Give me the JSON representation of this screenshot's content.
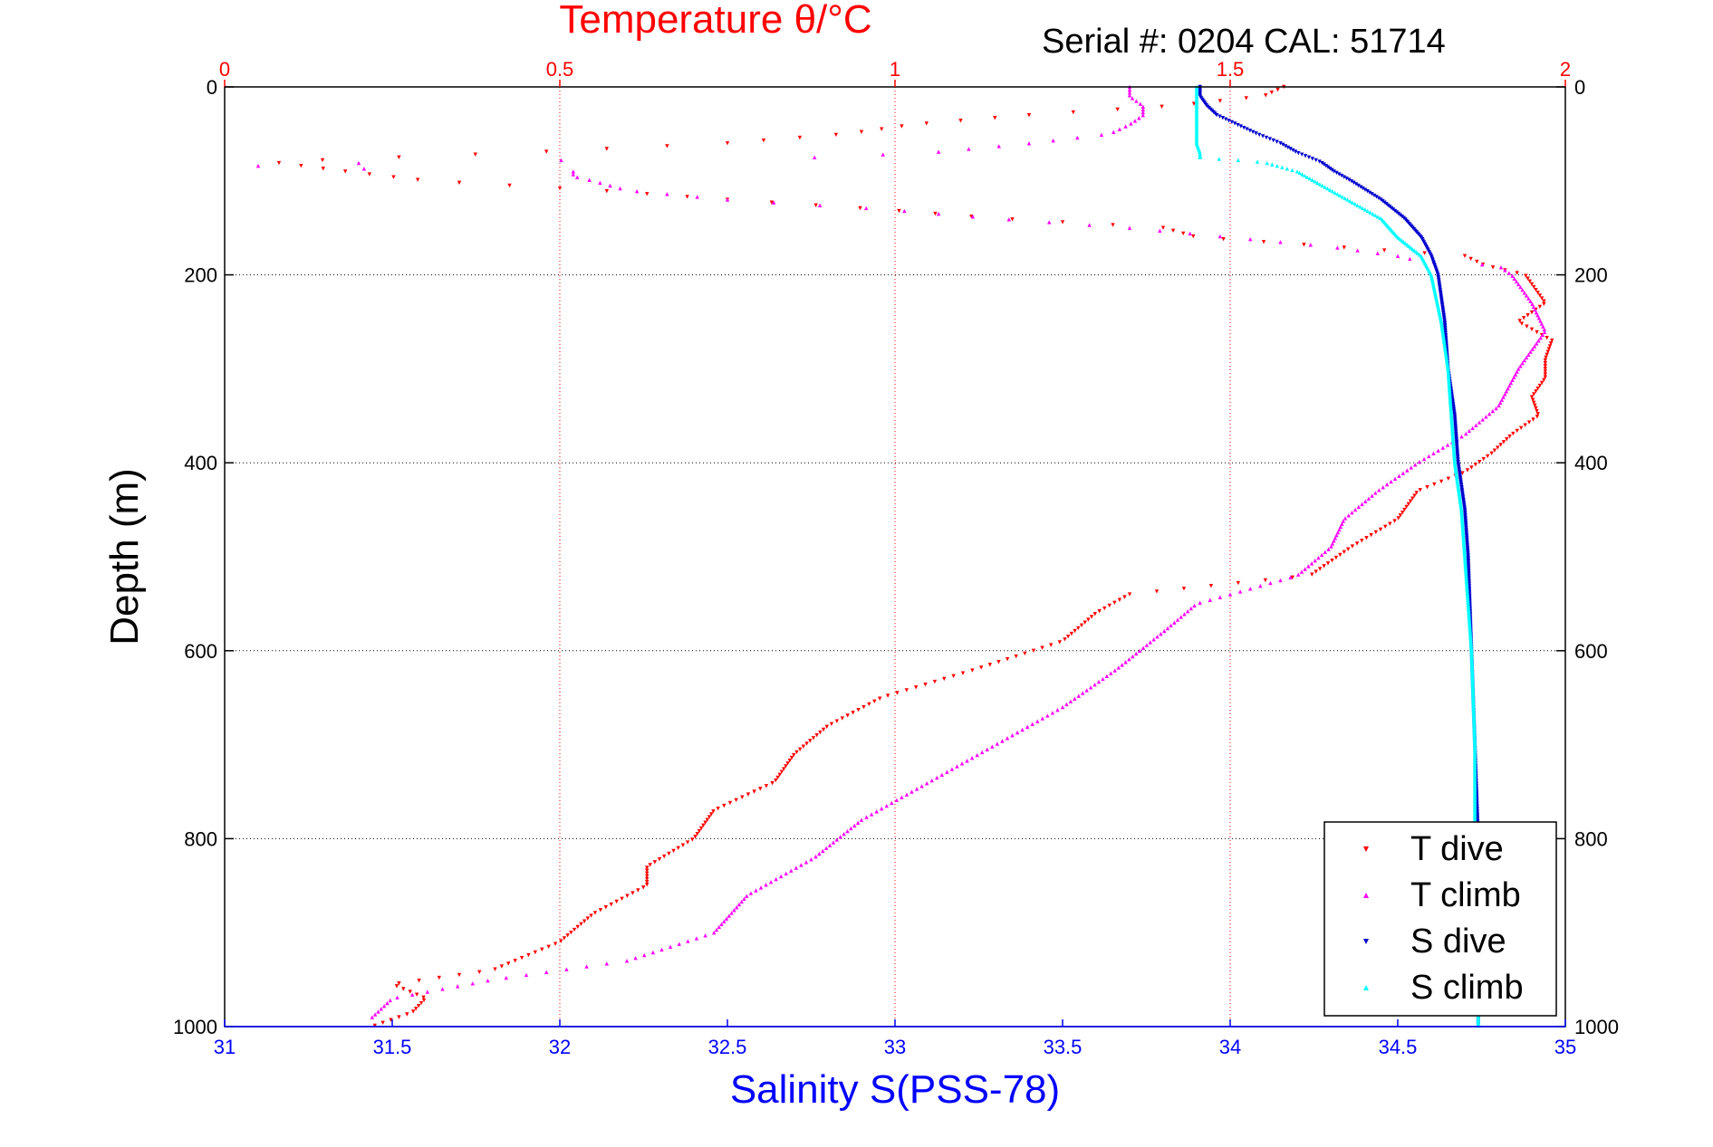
{
  "chart_data": {
    "type": "scatter",
    "top_axis": {
      "label": "Temperature θ/°C",
      "range": [
        0,
        2
      ],
      "ticks": [
        0,
        0.5,
        1,
        1.5,
        2
      ],
      "tick_labels": [
        "0",
        "0.5",
        "1",
        "1.5",
        "2"
      ],
      "color": "#ff0000"
    },
    "bottom_axis": {
      "label": "Salinity S(PSS-78)",
      "range": [
        31,
        35
      ],
      "ticks": [
        31,
        31.5,
        32,
        32.5,
        33,
        33.5,
        34,
        34.5,
        35
      ],
      "tick_labels": [
        "31",
        "31.5",
        "32",
        "32.5",
        "33",
        "33.5",
        "34",
        "34.5",
        "35"
      ],
      "color": "#0000ff"
    },
    "y_axis": {
      "label": "Depth (m)",
      "range": [
        0,
        1000
      ],
      "reversed": true,
      "ticks": [
        0,
        200,
        400,
        600,
        800,
        1000
      ],
      "tick_labels": [
        "0",
        "200",
        "400",
        "600",
        "800",
        "1000"
      ]
    },
    "grid": true,
    "annotation": "Serial #: 0204  CAL: 51714",
    "legend": {
      "position": "bottom-right",
      "entries": [
        "T dive",
        "T climb",
        "S dive",
        "S climb"
      ]
    },
    "series": [
      {
        "name": "T dive",
        "variable": "temperature",
        "color": "#ff0000",
        "marker": "triangle-down",
        "depth": [
          0,
          10,
          20,
          30,
          40,
          50,
          60,
          70,
          80,
          90,
          100,
          110,
          120,
          130,
          140,
          150,
          160,
          170,
          180,
          190,
          200,
          210,
          230,
          250,
          270,
          290,
          310,
          330,
          350,
          370,
          390,
          410,
          430,
          460,
          490,
          520,
          540,
          560,
          590,
          620,
          650,
          680,
          710,
          740,
          770,
          800,
          830,
          850,
          880,
          910,
          940,
          955,
          970,
          985,
          1000
        ],
        "values": [
          1.58,
          1.55,
          1.42,
          1.2,
          1.03,
          0.93,
          0.75,
          0.45,
          0.07,
          0.18,
          0.3,
          0.55,
          0.75,
          0.97,
          1.15,
          1.4,
          1.45,
          1.65,
          1.85,
          1.88,
          1.94,
          1.95,
          1.97,
          1.93,
          1.98,
          1.97,
          1.97,
          1.95,
          1.96,
          1.92,
          1.89,
          1.85,
          1.78,
          1.75,
          1.68,
          1.62,
          1.35,
          1.3,
          1.25,
          1.12,
          0.98,
          0.9,
          0.85,
          0.82,
          0.73,
          0.7,
          0.63,
          0.63,
          0.55,
          0.5,
          0.4,
          0.25,
          0.3,
          0.28,
          0.22
        ]
      },
      {
        "name": "T climb",
        "variable": "temperature",
        "color": "#ff00ff",
        "marker": "triangle-up",
        "depth": [
          0,
          10,
          20,
          30,
          40,
          50,
          60,
          70,
          75,
          80,
          85,
          90,
          95,
          100,
          110,
          120,
          130,
          140,
          150,
          160,
          170,
          180,
          185,
          190,
          200,
          210,
          230,
          260,
          300,
          340,
          370,
          400,
          430,
          460,
          490,
          520,
          550,
          580,
          620,
          660,
          700,
          740,
          780,
          820,
          860,
          900,
          930,
          950,
          970,
          990
        ],
        "values": [
          1.35,
          1.35,
          1.37,
          1.37,
          1.35,
          1.32,
          1.2,
          1.05,
          0.88,
          0.25,
          0.0,
          0.52,
          0.52,
          0.55,
          0.6,
          0.75,
          0.98,
          1.15,
          1.35,
          1.5,
          1.65,
          1.75,
          1.78,
          1.9,
          1.92,
          1.93,
          1.95,
          1.97,
          1.93,
          1.9,
          1.85,
          1.78,
          1.72,
          1.67,
          1.65,
          1.6,
          1.45,
          1.4,
          1.33,
          1.25,
          1.15,
          1.05,
          0.95,
          0.88,
          0.78,
          0.73,
          0.6,
          0.4,
          0.25,
          0.22
        ]
      },
      {
        "name": "S dive",
        "variable": "salinity",
        "color": "#0000cd",
        "marker": "triangle-down",
        "depth": [
          0,
          10,
          20,
          30,
          40,
          50,
          60,
          70,
          80,
          90,
          100,
          120,
          140,
          160,
          180,
          200,
          250,
          300,
          350,
          400,
          450,
          500,
          600,
          700,
          800,
          900,
          1000
        ],
        "values": [
          33.91,
          33.91,
          33.93,
          33.96,
          34.02,
          34.08,
          34.15,
          34.2,
          34.27,
          34.31,
          34.36,
          34.45,
          34.52,
          34.57,
          34.6,
          34.62,
          34.64,
          34.65,
          34.67,
          34.68,
          34.7,
          34.71,
          34.72,
          34.73,
          34.74,
          34.74,
          34.74
        ]
      },
      {
        "name": "S climb",
        "variable": "salinity",
        "color": "#00ffff",
        "marker": "triangle-up",
        "depth": [
          0,
          10,
          20,
          30,
          40,
          50,
          60,
          70,
          75,
          80,
          90,
          100,
          120,
          140,
          160,
          180,
          200,
          250,
          300,
          350,
          400,
          450,
          500,
          600,
          700,
          800,
          900,
          1000
        ],
        "values": [
          33.9,
          33.9,
          33.9,
          33.9,
          33.9,
          33.9,
          33.9,
          33.91,
          33.91,
          34.1,
          34.2,
          34.25,
          34.35,
          34.45,
          34.5,
          34.57,
          34.6,
          34.63,
          34.65,
          34.66,
          34.67,
          34.69,
          34.7,
          34.72,
          34.73,
          34.73,
          34.74,
          34.74
        ]
      }
    ]
  }
}
